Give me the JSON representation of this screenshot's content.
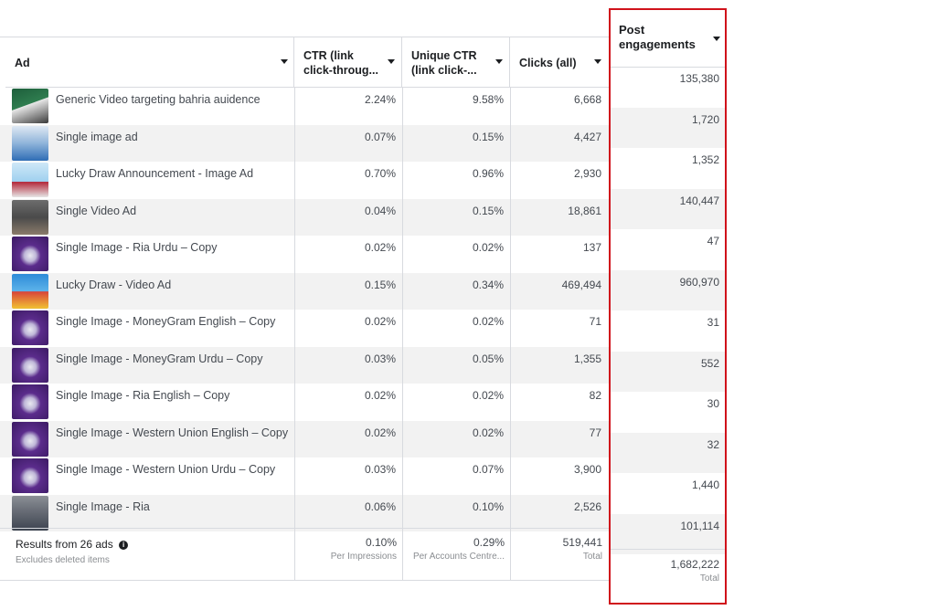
{
  "columns": {
    "ad": "Ad",
    "ctr_line1": "CTR (link",
    "ctr_line2": "click-throug...",
    "unique_ctr_line1": "Unique CTR",
    "unique_ctr_line2": "(link click-...",
    "clicks": "Clicks (all)",
    "post_eng_line1": "Post",
    "post_eng_line2": "engagements"
  },
  "rows": [
    {
      "name": "Generic Video targeting bahria auidence",
      "ctr": "2.24%",
      "unique_ctr": "9.58%",
      "clicks": "6,668",
      "post_engagements": "135,380",
      "thumb": "green"
    },
    {
      "name": "Single image ad",
      "ctr": "0.07%",
      "unique_ctr": "0.15%",
      "clicks": "4,427",
      "post_engagements": "1,720",
      "thumb": "light"
    },
    {
      "name": "Lucky Draw Announcement - Image Ad",
      "ctr": "0.70%",
      "unique_ctr": "0.96%",
      "clicks": "2,930",
      "post_engagements": "1,352",
      "thumb": "sky"
    },
    {
      "name": "Single Video Ad",
      "ctr": "0.04%",
      "unique_ctr": "0.15%",
      "clicks": "18,861",
      "post_engagements": "140,447",
      "thumb": "gray"
    },
    {
      "name": "Single Image - Ria Urdu – Copy",
      "ctr": "0.02%",
      "unique_ctr": "0.02%",
      "clicks": "137",
      "post_engagements": "47",
      "thumb": "purple"
    },
    {
      "name": "Lucky Draw - Video Ad",
      "ctr": "0.15%",
      "unique_ctr": "0.34%",
      "clicks": "469,494",
      "post_engagements": "960,970",
      "thumb": "blue"
    },
    {
      "name": "Single Image - MoneyGram English – Copy",
      "ctr": "0.02%",
      "unique_ctr": "0.02%",
      "clicks": "71",
      "post_engagements": "31",
      "thumb": "purple"
    },
    {
      "name": "Single Image - MoneyGram Urdu – Copy",
      "ctr": "0.03%",
      "unique_ctr": "0.05%",
      "clicks": "1,355",
      "post_engagements": "552",
      "thumb": "purple"
    },
    {
      "name": "Single Image - Ria English – Copy",
      "ctr": "0.02%",
      "unique_ctr": "0.02%",
      "clicks": "82",
      "post_engagements": "30",
      "thumb": "purple"
    },
    {
      "name": "Single Image - Western Union English – Copy",
      "ctr": "0.02%",
      "unique_ctr": "0.02%",
      "clicks": "77",
      "post_engagements": "32",
      "thumb": "purple"
    },
    {
      "name": "Single Image - Western Union Urdu – Copy",
      "ctr": "0.03%",
      "unique_ctr": "0.07%",
      "clicks": "3,900",
      "post_engagements": "1,440",
      "thumb": "purple"
    },
    {
      "name": "Single Image - Ria",
      "ctr": "0.06%",
      "unique_ctr": "0.10%",
      "clicks": "2,526",
      "post_engagements": "101,114",
      "thumb": "street"
    }
  ],
  "footer": {
    "results_label": "Results from 26 ads",
    "excludes": "Excludes deleted items",
    "ctr": "0.10%",
    "ctr_sub": "Per Impressions",
    "unique_ctr": "0.29%",
    "unique_ctr_sub": "Per Accounts Centre...",
    "clicks": "519,441",
    "clicks_sub": "Total",
    "post_engagements": "1,682,222",
    "post_engagements_sub": "Total"
  },
  "icons": {
    "sort": "caret-down-icon",
    "info": "info-icon"
  },
  "colors": {
    "highlight_border": "#d0121b",
    "alt_row": "#f2f2f2"
  }
}
